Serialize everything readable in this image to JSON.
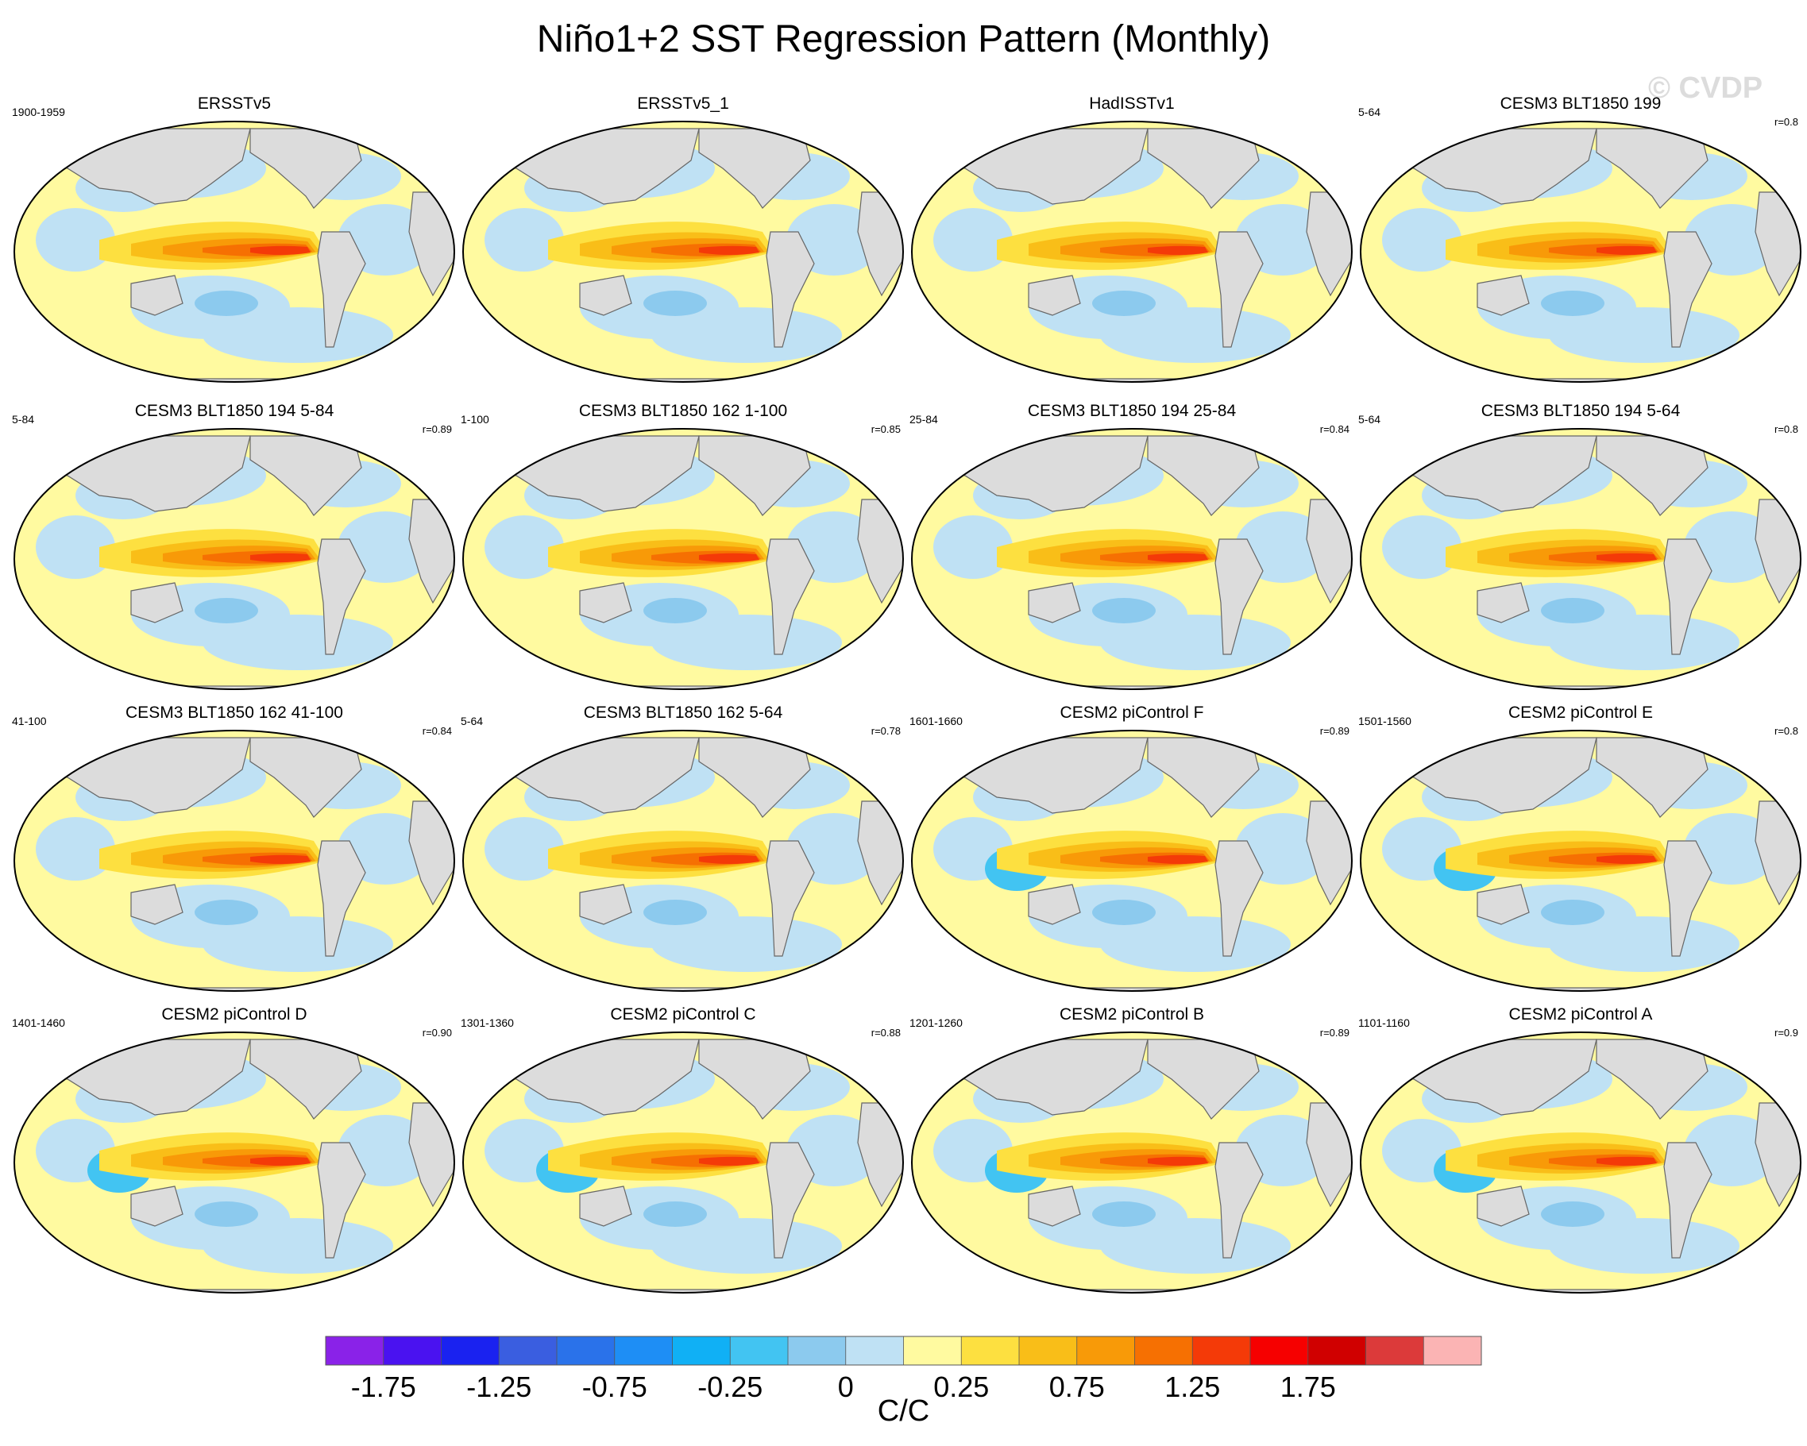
{
  "title": "Niño1+2 SST Regression Pattern (Monthly)",
  "watermark": "© CVDP",
  "chart_data": {
    "type": "heatmap",
    "description_kind": "regression maps",
    "panels": [
      {
        "name": "ERSSTv5",
        "period": "1900-1959",
        "r": ""
      },
      {
        "name": "ERSSTv5_1",
        "period": "",
        "r": ""
      },
      {
        "name": "HadISSTv1",
        "period": "",
        "r": ""
      },
      {
        "name": "CESM3 BLT1850 199",
        "period": "5-64",
        "r": "r=0.8"
      },
      {
        "name": "CESM3 BLT1850 194 5-84",
        "period": "5-84",
        "r": "r=0.89"
      },
      {
        "name": "CESM3 BLT1850 162 1-100",
        "period": "1-100",
        "r": "r=0.85"
      },
      {
        "name": "CESM3 BLT1850 194 25-84",
        "period": "25-84",
        "r": "r=0.84"
      },
      {
        "name": "CESM3 BLT1850 194 5-64",
        "period": "5-64",
        "r": "r=0.8"
      },
      {
        "name": "CESM3 BLT1850 162 41-100",
        "period": "41-100",
        "r": "r=0.84"
      },
      {
        "name": "CESM3 BLT1850 162 5-64",
        "period": "5-64",
        "r": "r=0.78"
      },
      {
        "name": "CESM2 piControl F",
        "period": "1601-1660",
        "r": "r=0.89"
      },
      {
        "name": "CESM2 piControl E",
        "period": "1501-1560",
        "r": "r=0.8"
      },
      {
        "name": "CESM2 piControl D",
        "period": "1401-1460",
        "r": "r=0.90"
      },
      {
        "name": "CESM2 piControl C",
        "period": "1301-1360",
        "r": "r=0.88"
      },
      {
        "name": "CESM2 piControl B",
        "period": "1201-1260",
        "r": "r=0.89"
      },
      {
        "name": "CESM2 piControl A",
        "period": "1101-1160",
        "r": "r=0.9"
      }
    ],
    "colorbar": {
      "levels": [
        -2.0,
        -1.75,
        -1.5,
        -1.25,
        -1.0,
        -0.75,
        -0.5,
        -0.25,
        -0.1,
        0,
        0.1,
        0.25,
        0.5,
        0.75,
        1.0,
        1.25,
        1.5,
        1.75,
        2.0
      ],
      "tick_labels": [
        "-1.75",
        "-1.25",
        "-0.75",
        "-0.25",
        "0",
        "0.25",
        "0.75",
        "1.25",
        "1.75"
      ],
      "colors": [
        "#8a22e8",
        "#4a12f0",
        "#1a22f0",
        "#3a5ee0",
        "#2a72ea",
        "#1e8ef5",
        "#10b0f5",
        "#42c4f2",
        "#8ccaee",
        "#bfe1f4",
        "#fffaa0",
        "#fde040",
        "#f9be18",
        "#f89a08",
        "#f67002",
        "#f43a08",
        "#f60000",
        "#d00000",
        "#dc3a3a",
        "#fbb4b4"
      ],
      "unit": "C/C"
    }
  }
}
